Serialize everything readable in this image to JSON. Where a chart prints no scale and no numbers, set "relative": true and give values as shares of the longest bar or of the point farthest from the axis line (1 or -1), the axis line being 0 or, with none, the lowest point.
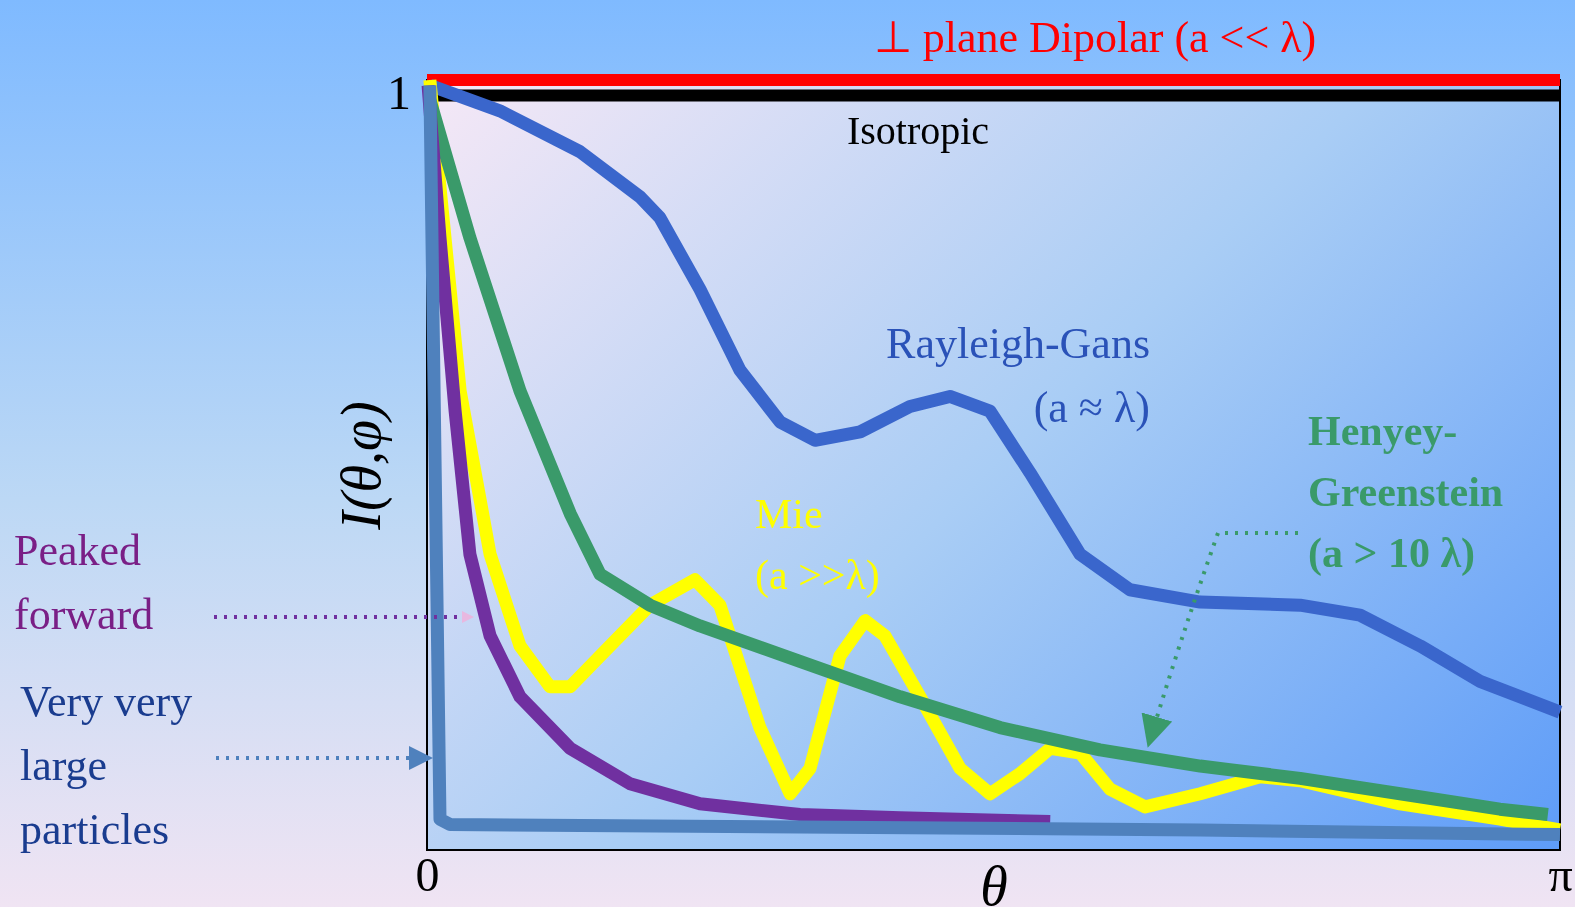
{
  "chart_data": {
    "type": "line",
    "xlabel": "θ",
    "ylabel": "I(θ,φ)",
    "xlim": [
      0,
      3.1416
    ],
    "xticks": [
      0,
      {
        "value": 3.1416,
        "label": "π"
      }
    ],
    "relative": true,
    "annotations": [
      "1"
    ],
    "grid": false,
    "series": [
      {
        "name": "⊥ plane Dipolar (a << λ)",
        "color": "#ff0000",
        "x": [
          0,
          3.1416
        ],
        "values": [
          1.0,
          1.0
        ]
      },
      {
        "name": "Isotropic",
        "color": "#000000",
        "x": [
          0,
          3.1416
        ],
        "values": [
          0.98,
          0.98
        ]
      },
      {
        "name": "Rayleigh-Gans\n(a ≈ λ)",
        "color": "#3a66cc",
        "x": [
          0.008,
          0.202,
          0.424,
          0.591,
          0.646,
          0.757,
          0.868,
          0.979,
          1.076,
          1.201,
          1.339,
          1.45,
          1.561,
          1.672,
          1.811,
          1.949,
          2.144,
          2.421,
          2.587,
          2.754,
          2.92,
          3.1416
        ],
        "values": [
          0.993,
          0.96,
          0.907,
          0.848,
          0.821,
          0.728,
          0.623,
          0.556,
          0.532,
          0.543,
          0.576,
          0.589,
          0.57,
          0.49,
          0.384,
          0.338,
          0.322,
          0.318,
          0.305,
          0.265,
          0.219,
          0.179
        ]
      },
      {
        "name": "Mie\n(a >>λ)",
        "color": "#ffff00",
        "x": [
          0.008,
          0.036,
          0.092,
          0.175,
          0.258,
          0.341,
          0.397,
          0.48,
          0.618,
          0.743,
          0.812,
          0.923,
          1.007,
          1.062,
          1.145,
          1.215,
          1.27,
          1.367,
          1.478,
          1.561,
          1.644,
          1.728,
          1.811,
          1.894,
          1.991,
          2.144,
          2.31,
          2.421,
          2.698,
          2.975,
          3.1416
        ],
        "values": [
          1.0,
          0.861,
          0.596,
          0.384,
          0.265,
          0.212,
          0.212,
          0.252,
          0.318,
          0.351,
          0.318,
          0.159,
          0.073,
          0.106,
          0.252,
          0.298,
          0.278,
          0.199,
          0.106,
          0.073,
          0.099,
          0.132,
          0.126,
          0.079,
          0.056,
          0.073,
          0.095,
          0.09,
          0.06,
          0.04,
          0.026
        ]
      },
      {
        "name": "Henyey-\nGreenstein\n(a > 10 λ)",
        "color": "#3a9a6a",
        "x": [
          0.008,
          0.119,
          0.258,
          0.397,
          0.48,
          0.618,
          0.757,
          1.034,
          1.312,
          1.589,
          1.866,
          2.144,
          2.421,
          2.698,
          2.975,
          3.108
        ],
        "values": [
          0.974,
          0.795,
          0.596,
          0.437,
          0.358,
          0.318,
          0.291,
          0.245,
          0.199,
          0.159,
          0.13,
          0.109,
          0.093,
          0.073,
          0.053,
          0.046
        ]
      },
      {
        "name": "Peaked\nforward",
        "color": "#7030a0",
        "x": [
          0.003,
          0.036,
          0.078,
          0.119,
          0.175,
          0.258,
          0.397,
          0.563,
          0.757,
          1.034,
          1.312,
          1.728
        ],
        "values": [
          0.993,
          0.795,
          0.57,
          0.384,
          0.278,
          0.199,
          0.132,
          0.086,
          0.06,
          0.046,
          0.042,
          0.037
        ]
      },
      {
        "name": "Very very\nlarge\nparticles",
        "color": "#4f81bd",
        "x": [
          0.008,
          0.036,
          0.064,
          1.034,
          2.144,
          3.1416
        ],
        "values": [
          0.993,
          0.04,
          0.033,
          0.03,
          0.026,
          0.02
        ]
      }
    ]
  }
}
